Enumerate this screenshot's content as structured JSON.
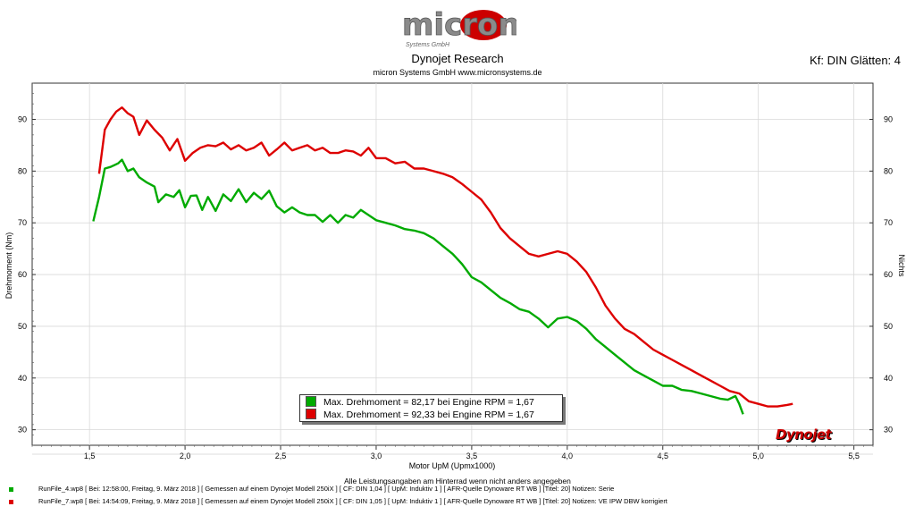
{
  "header": {
    "logo_text": "micron",
    "logo_subtext": "Systems GmbH",
    "title": "Dynojet Research",
    "subtitle": "micron Systems GmbH  www.micronsystems.de",
    "kf_label": "Kf: DIN Glätten: 4"
  },
  "legend": {
    "green": "Max. Drehmoment = 82,17 bei Engine RPM = 1,67",
    "red": "Max. Drehmoment = 92,33 bei Engine RPM = 1,67"
  },
  "footer": {
    "notice": "Alle Leistungsangaben am Hinterrad wenn nicht anders angegeben",
    "run1": "RunFile_4.wp8  [  Bei:  12:58:00,  Freitag,  9.  März  2018  ]  [  Gemessen  auf  einem  Dynojet  Modell  250iX  ]  [  CF:  DIN  1,04  ]  [  UpM:  Induktiv  1  ]  [  AFR-Quelle   Dynoware  RT  WB  ]  [Titel:  20]   Notizen:  Serie",
    "run2": "RunFile_7.wp8  [  Bei:  14:54:09,  Freitag,  9.  März  2018  ]  [  Gemessen  auf  einem  Dynojet  Modell  250iX  ]  [  CF:  DIN  1,05  ]  [  UpM:  Induktiv  1  ]  [  AFR-Quelle   Dynoware  RT  WB  ]  [Titel:  20]   Notizen:  VE  IPW  DBW  korrigiert"
  },
  "brand_logo": "Dynojet",
  "colors": {
    "green": "#00aa00",
    "red": "#dd0000"
  },
  "chart_data": {
    "type": "line",
    "xlabel": "Motor UpM (Upmx1000)",
    "ylabel": "Drehmoment (Nm)",
    "y2label": "Nichts",
    "xlim": [
      1.2,
      5.6
    ],
    "ylim": [
      27,
      97
    ],
    "xticks": [
      1.5,
      2.0,
      2.5,
      3.0,
      3.5,
      4.0,
      4.5,
      5.0,
      5.5
    ],
    "xtick_labels": [
      "1,5",
      "2,0",
      "2,5",
      "3,0",
      "3,5",
      "4,0",
      "4,5",
      "5,0",
      "5,5"
    ],
    "yticks": [
      30,
      40,
      50,
      60,
      70,
      80,
      90
    ],
    "series": [
      {
        "name": "RunFile_4 (Serie)",
        "color": "#00aa00",
        "x": [
          1.52,
          1.55,
          1.58,
          1.61,
          1.65,
          1.67,
          1.7,
          1.73,
          1.76,
          1.8,
          1.84,
          1.86,
          1.9,
          1.94,
          1.97,
          2.0,
          2.03,
          2.06,
          2.09,
          2.12,
          2.16,
          2.2,
          2.24,
          2.28,
          2.32,
          2.36,
          2.4,
          2.44,
          2.48,
          2.52,
          2.56,
          2.6,
          2.64,
          2.68,
          2.72,
          2.76,
          2.8,
          2.84,
          2.88,
          2.92,
          2.96,
          3.0,
          3.05,
          3.1,
          3.15,
          3.2,
          3.25,
          3.3,
          3.35,
          3.4,
          3.45,
          3.5,
          3.55,
          3.6,
          3.65,
          3.7,
          3.75,
          3.8,
          3.85,
          3.9,
          3.95,
          4.0,
          4.05,
          4.1,
          4.15,
          4.2,
          4.25,
          4.3,
          4.35,
          4.4,
          4.45,
          4.5,
          4.55,
          4.6,
          4.65,
          4.7,
          4.75,
          4.8,
          4.84,
          4.88,
          4.9,
          4.92
        ],
        "values": [
          70.3,
          75.0,
          80.5,
          80.8,
          81.5,
          82.2,
          80.0,
          80.5,
          78.8,
          77.8,
          77.0,
          74.0,
          75.5,
          75.0,
          76.3,
          73.0,
          75.2,
          75.3,
          72.5,
          75.0,
          72.3,
          75.5,
          74.2,
          76.5,
          74.0,
          75.8,
          74.6,
          76.2,
          73.2,
          72.0,
          73.0,
          72.0,
          71.5,
          71.5,
          70.2,
          71.5,
          70.0,
          71.5,
          71.0,
          72.5,
          71.5,
          70.5,
          70.0,
          69.5,
          68.8,
          68.5,
          68.0,
          67.0,
          65.5,
          64.0,
          62.0,
          59.5,
          58.5,
          57.0,
          55.5,
          54.5,
          53.3,
          52.8,
          51.5,
          49.8,
          51.5,
          51.8,
          51.0,
          49.5,
          47.5,
          46.0,
          44.5,
          43.0,
          41.5,
          40.5,
          39.5,
          38.5,
          38.5,
          37.7,
          37.5,
          37.0,
          36.5,
          36.0,
          35.8,
          36.5,
          35.0,
          33.0
        ]
      },
      {
        "name": "RunFile_7 (VE IPW DBW korrigiert)",
        "color": "#dd0000",
        "x": [
          1.55,
          1.58,
          1.61,
          1.64,
          1.67,
          1.7,
          1.73,
          1.76,
          1.8,
          1.84,
          1.88,
          1.92,
          1.96,
          2.0,
          2.04,
          2.08,
          2.12,
          2.16,
          2.2,
          2.24,
          2.28,
          2.32,
          2.36,
          2.4,
          2.44,
          2.48,
          2.52,
          2.56,
          2.6,
          2.64,
          2.68,
          2.72,
          2.76,
          2.8,
          2.84,
          2.88,
          2.92,
          2.96,
          3.0,
          3.05,
          3.1,
          3.15,
          3.2,
          3.25,
          3.3,
          3.35,
          3.4,
          3.45,
          3.5,
          3.55,
          3.6,
          3.65,
          3.7,
          3.75,
          3.8,
          3.85,
          3.9,
          3.95,
          4.0,
          4.05,
          4.1,
          4.15,
          4.2,
          4.25,
          4.3,
          4.35,
          4.4,
          4.45,
          4.5,
          4.55,
          4.6,
          4.65,
          4.7,
          4.75,
          4.8,
          4.85,
          4.9,
          4.95,
          5.0,
          5.05,
          5.1,
          5.15,
          5.18
        ],
        "values": [
          79.5,
          88.0,
          90.0,
          91.5,
          92.3,
          91.2,
          90.5,
          87.0,
          89.8,
          88.0,
          86.5,
          84.0,
          86.2,
          82.0,
          83.5,
          84.5,
          85.0,
          84.8,
          85.5,
          84.2,
          85.0,
          84.0,
          84.5,
          85.5,
          83.0,
          84.2,
          85.5,
          84.0,
          84.5,
          85.0,
          84.0,
          84.5,
          83.5,
          83.5,
          84.0,
          83.8,
          83.0,
          84.5,
          82.5,
          82.5,
          81.5,
          81.8,
          80.5,
          80.5,
          80.0,
          79.5,
          78.8,
          77.5,
          76.0,
          74.5,
          72.0,
          69.0,
          67.0,
          65.5,
          64.0,
          63.5,
          64.0,
          64.5,
          64.0,
          62.5,
          60.5,
          57.5,
          54.0,
          51.5,
          49.5,
          48.5,
          47.0,
          45.5,
          44.5,
          43.5,
          42.5,
          41.5,
          40.5,
          39.5,
          38.5,
          37.5,
          37.0,
          35.5,
          35.0,
          34.5,
          34.5,
          34.8,
          35.0
        ]
      }
    ]
  }
}
